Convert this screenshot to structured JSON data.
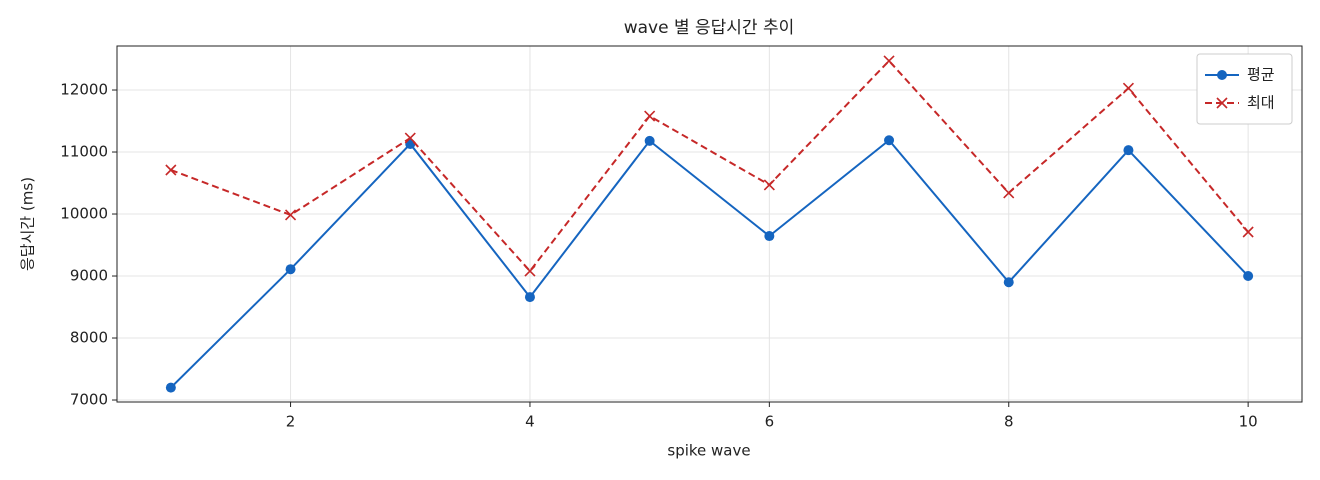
{
  "chart_data": {
    "type": "line",
    "title": "wave 별 응답시간 추이",
    "x_label": "spike wave",
    "y_label": "응답시간 (ms)",
    "x": [
      1,
      2,
      3,
      4,
      5,
      6,
      7,
      8,
      9,
      10
    ],
    "series": [
      {
        "name": "평균",
        "color": "#1565c0",
        "marker": "circle",
        "dash": false,
        "values": [
          7200,
          9110,
          11130,
          8660,
          11180,
          9645,
          11190,
          8900,
          11030,
          9000
        ]
      },
      {
        "name": "최대",
        "color": "#c62828",
        "marker": "x",
        "dash": true,
        "values": [
          10710,
          9985,
          11225,
          9080,
          11580,
          10470,
          12470,
          10340,
          12030,
          9710
        ]
      }
    ],
    "xlim": [
      0.55,
      10.45
    ],
    "xticks": [
      2,
      4,
      6,
      8,
      10
    ],
    "ylim": [
      6968,
      12710
    ],
    "yticks": [
      7000,
      8000,
      9000,
      10000,
      11000,
      12000
    ],
    "grid": true,
    "legend": "upper right"
  }
}
